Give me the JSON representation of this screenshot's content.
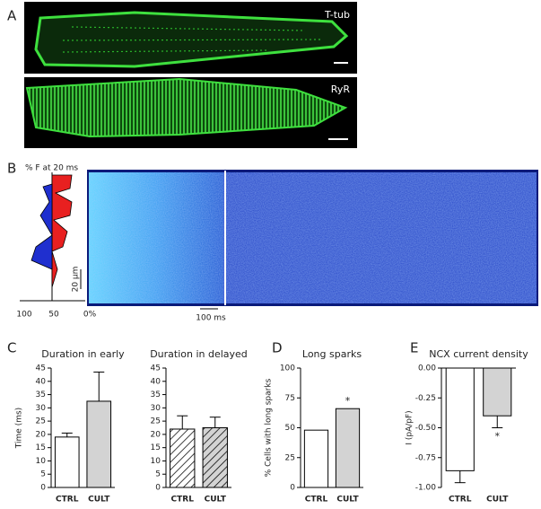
{
  "figure": {
    "panel_labels": [
      "A",
      "B",
      "C",
      "D",
      "E"
    ],
    "image_labels": [
      "T-tub",
      "RyR"
    ],
    "linescan": {
      "profile_title": "% F at 20 ms",
      "profile_ticks": [
        "100",
        "50",
        "0%"
      ],
      "scale_y": "20 µm",
      "scale_x": "100 ms"
    }
  },
  "chart_data": [
    {
      "type": "bar",
      "title": "Duration in early",
      "ylabel": "Time (ms)",
      "categories": [
        "CTRL",
        "CULT"
      ],
      "values": [
        19,
        32.5
      ],
      "errors": [
        1.5,
        11
      ],
      "colors": [
        "#ffffff",
        "#d3d3d3"
      ],
      "hatch": false,
      "ylim": [
        0,
        45
      ],
      "yticks": [
        0,
        5,
        10,
        15,
        20,
        25,
        30,
        35,
        40,
        45
      ]
    },
    {
      "type": "bar",
      "title": "Duration in delayed",
      "categories": [
        "CTRL",
        "CULT"
      ],
      "values": [
        22,
        22.5
      ],
      "errors": [
        5,
        4
      ],
      "colors": [
        "#ffffff",
        "#d3d3d3"
      ],
      "hatch": true,
      "ylim": [
        0,
        45
      ],
      "yticks": [
        0,
        5,
        10,
        15,
        20,
        25,
        30,
        35,
        40,
        45
      ]
    },
    {
      "type": "bar",
      "title": "Long sparks",
      "ylabel": "% Cells with long sparks",
      "categories": [
        "CTRL",
        "CULT"
      ],
      "values": [
        48,
        66
      ],
      "colors": [
        "#ffffff",
        "#d3d3d3"
      ],
      "hatch": false,
      "annotation": "*",
      "ylim": [
        0,
        100
      ],
      "yticks": [
        0,
        25,
        50,
        75,
        100
      ]
    },
    {
      "type": "bar",
      "title": "NCX current density",
      "ylabel": "I (pA/pF)",
      "categories": [
        "CTRL",
        "CULT"
      ],
      "values": [
        -0.86,
        -0.4
      ],
      "errors": [
        0.1,
        0.1
      ],
      "colors": [
        "#ffffff",
        "#d3d3d3"
      ],
      "hatch": false,
      "annotation": "*",
      "ylim": [
        -1,
        0
      ],
      "yticks": [
        {
          "value": 0,
          "label": "0.00"
        },
        {
          "value": -0.25,
          "label": "-0.25"
        },
        {
          "value": -0.5,
          "label": "-0.50"
        },
        {
          "value": -0.75,
          "label": "-0.75"
        },
        {
          "value": -1,
          "label": "-1.00"
        }
      ]
    }
  ]
}
